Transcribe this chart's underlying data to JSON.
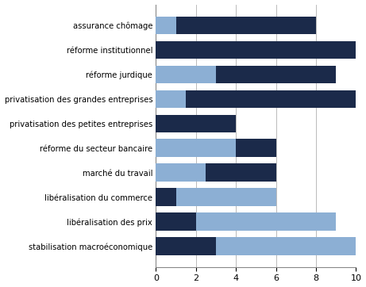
{
  "categories": [
    "stabilisation macroéconomique",
    "libéralisation des prix",
    "libéralisation du commerce",
    "marché du travail",
    "réforme du secteur bancaire",
    "privatisation des petites entreprises",
    "privatisation des grandes entreprises",
    "réforme jurdique",
    "réforme institutionnel",
    "assurance chômage"
  ],
  "bar_segments": [
    [
      {
        "color": "#1b2a4a",
        "value": 3
      },
      {
        "color": "#8cafd4",
        "value": 7
      }
    ],
    [
      {
        "color": "#1b2a4a",
        "value": 2
      },
      {
        "color": "#8cafd4",
        "value": 7
      }
    ],
    [
      {
        "color": "#1b2a4a",
        "value": 1
      },
      {
        "color": "#8cafd4",
        "value": 5
      }
    ],
    [
      {
        "color": "#8cafd4",
        "value": 2.5
      },
      {
        "color": "#1b2a4a",
        "value": 3.5
      }
    ],
    [
      {
        "color": "#8cafd4",
        "value": 4
      },
      {
        "color": "#1b2a4a",
        "value": 2
      }
    ],
    [
      {
        "color": "#1b2a4a",
        "value": 4
      },
      {
        "color": "#8cafd4",
        "value": 0
      }
    ],
    [
      {
        "color": "#8cafd4",
        "value": 1.5
      },
      {
        "color": "#1b2a4a",
        "value": 8.5
      }
    ],
    [
      {
        "color": "#8cafd4",
        "value": 3
      },
      {
        "color": "#1b2a4a",
        "value": 6
      }
    ],
    [
      {
        "color": "#1b2a4a",
        "value": 10
      },
      {
        "color": "#8cafd4",
        "value": 0
      }
    ],
    [
      {
        "color": "#8cafd4",
        "value": 1
      },
      {
        "color": "#1b2a4a",
        "value": 7
      }
    ]
  ],
  "xlim": [
    0,
    10
  ],
  "xticks": [
    0,
    2,
    4,
    6,
    8,
    10
  ],
  "bar_height": 0.72,
  "label_fontsize": 7.2,
  "tick_fontsize": 8,
  "background_color": "#ffffff",
  "grid_color": "#b0b0b0",
  "spine_color": "#888888"
}
